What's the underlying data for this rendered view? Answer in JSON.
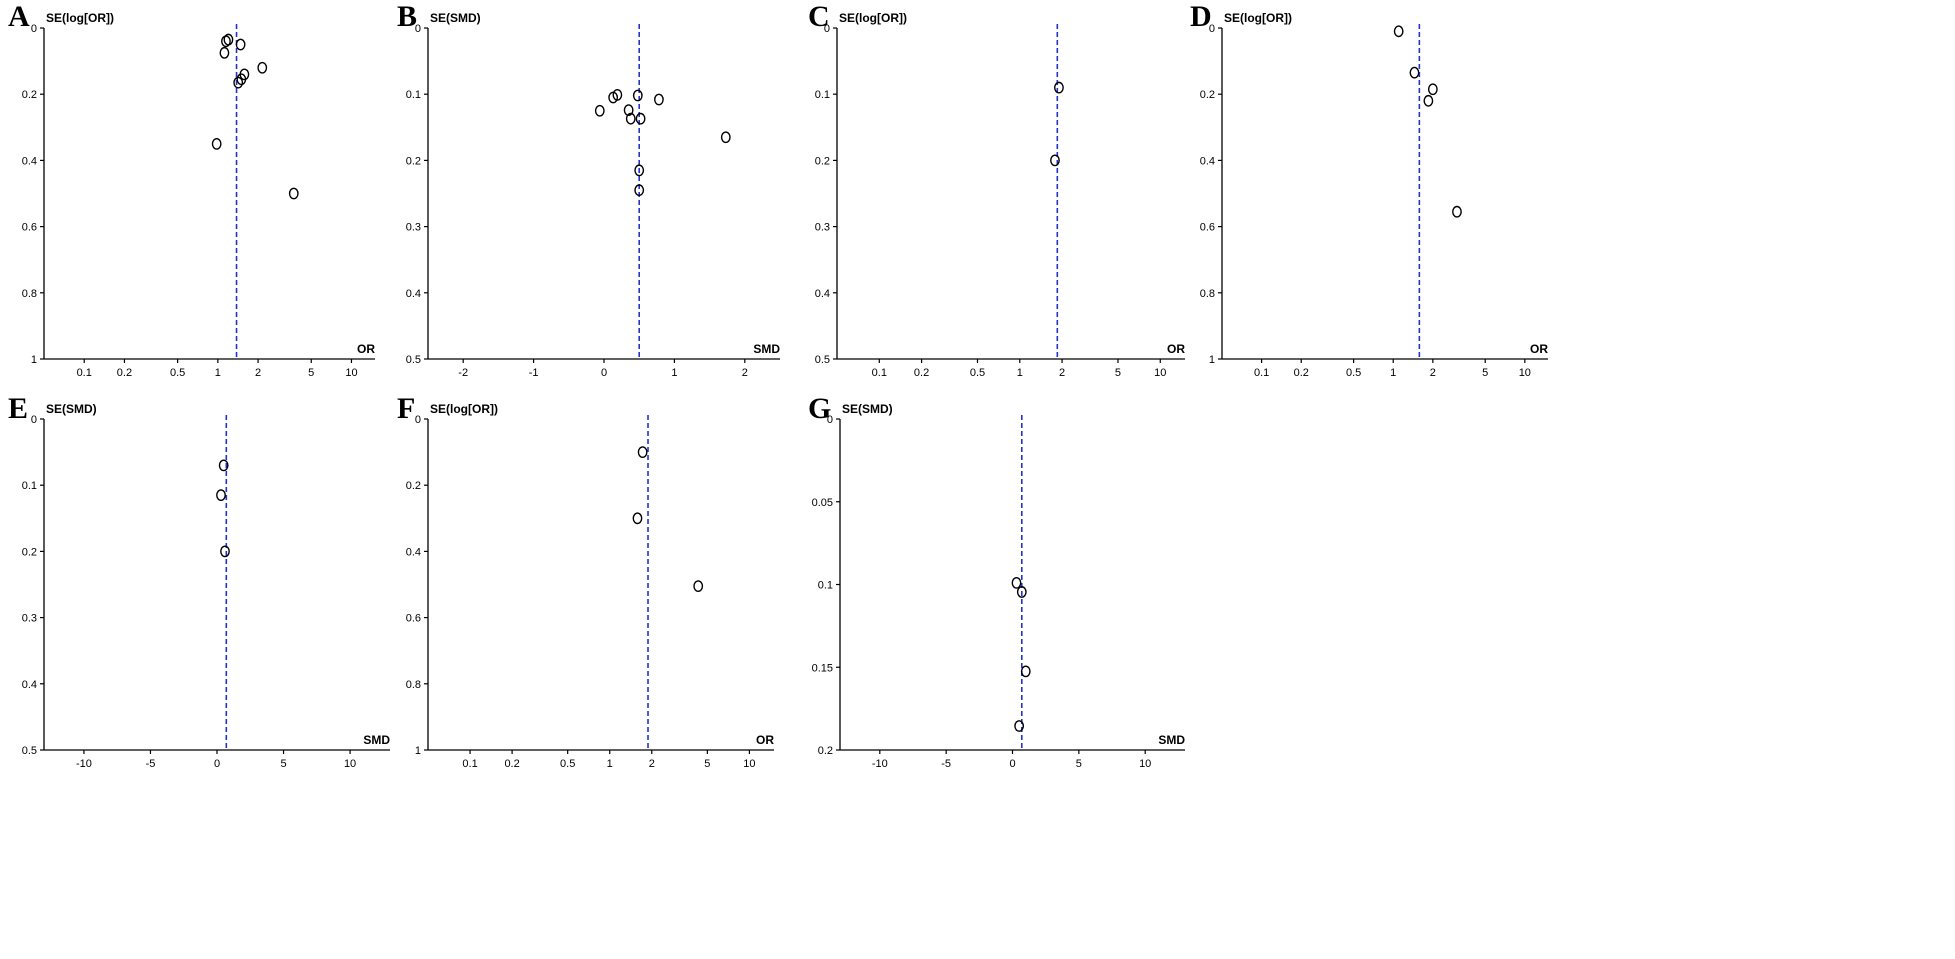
{
  "chart_data": [
    {
      "panel": "A",
      "type": "scatter",
      "ylabel": "SE(log[OR])",
      "xlabel": "OR",
      "xscale": "log",
      "xlim": [
        0.05,
        15
      ],
      "ylim": [
        0,
        1
      ],
      "y_reversed": true,
      "xticks": [
        0.1,
        0.2,
        0.5,
        1,
        2,
        5,
        10
      ],
      "xtick_labels": [
        "0.1",
        "0.2",
        "0.5",
        "1",
        "2",
        "5",
        "10"
      ],
      "yticks": [
        0,
        0.2,
        0.4,
        0.6,
        0.8,
        1
      ],
      "ytick_labels": [
        "0",
        "0.2",
        "0.4",
        "0.6",
        "0.8",
        "1"
      ],
      "reference_line": 1.38,
      "points": [
        {
          "x": 1.15,
          "y": 0.04
        },
        {
          "x": 1.2,
          "y": 0.035
        },
        {
          "x": 1.48,
          "y": 0.05
        },
        {
          "x": 1.12,
          "y": 0.075
        },
        {
          "x": 2.15,
          "y": 0.12
        },
        {
          "x": 1.58,
          "y": 0.14
        },
        {
          "x": 1.5,
          "y": 0.155
        },
        {
          "x": 1.42,
          "y": 0.165
        },
        {
          "x": 0.98,
          "y": 0.35
        },
        {
          "x": 3.7,
          "y": 0.5
        }
      ]
    },
    {
      "panel": "B",
      "type": "scatter",
      "ylabel": "SE(SMD)",
      "xlabel": "SMD",
      "xscale": "linear",
      "xlim": [
        -2.5,
        2.5
      ],
      "ylim": [
        0,
        0.5
      ],
      "y_reversed": true,
      "xticks": [
        -2,
        -1,
        0,
        1,
        2
      ],
      "xtick_labels": [
        "-2",
        "-1",
        "0",
        "1",
        "2"
      ],
      "yticks": [
        0,
        0.1,
        0.2,
        0.3,
        0.4,
        0.5
      ],
      "ytick_labels": [
        "0",
        "0.1",
        "0.2",
        "0.3",
        "0.4",
        "0.5"
      ],
      "reference_line": 0.5,
      "points": [
        {
          "x": -0.06,
          "y": 0.125
        },
        {
          "x": 0.13,
          "y": 0.105
        },
        {
          "x": 0.19,
          "y": 0.101
        },
        {
          "x": 0.35,
          "y": 0.124
        },
        {
          "x": 0.38,
          "y": 0.137
        },
        {
          "x": 0.48,
          "y": 0.102
        },
        {
          "x": 0.52,
          "y": 0.137
        },
        {
          "x": 0.78,
          "y": 0.108
        },
        {
          "x": 1.73,
          "y": 0.165
        },
        {
          "x": 0.5,
          "y": 0.215
        },
        {
          "x": 0.5,
          "y": 0.245
        }
      ]
    },
    {
      "panel": "C",
      "type": "scatter",
      "ylabel": "SE(log[OR])",
      "xlabel": "OR",
      "xscale": "log",
      "xlim": [
        0.05,
        15
      ],
      "ylim": [
        0,
        0.5
      ],
      "y_reversed": true,
      "xticks": [
        0.1,
        0.2,
        0.5,
        1,
        2,
        5,
        10
      ],
      "xtick_labels": [
        "0.1",
        "0.2",
        "0.5",
        "1",
        "2",
        "5",
        "10"
      ],
      "yticks": [
        0,
        0.1,
        0.2,
        0.3,
        0.4,
        0.5
      ],
      "ytick_labels": [
        "0",
        "0.1",
        "0.2",
        "0.3",
        "0.4",
        "0.5"
      ],
      "reference_line": 1.85,
      "points": [
        {
          "x": 1.9,
          "y": 0.09
        },
        {
          "x": 1.78,
          "y": 0.2
        }
      ]
    },
    {
      "panel": "D",
      "type": "scatter",
      "ylabel": "SE(log[OR])",
      "xlabel": "OR",
      "xscale": "log",
      "xlim": [
        0.05,
        15
      ],
      "ylim": [
        0,
        1
      ],
      "y_reversed": true,
      "xticks": [
        0.1,
        0.2,
        0.5,
        1,
        2,
        5,
        10
      ],
      "xtick_labels": [
        "0.1",
        "0.2",
        "0.5",
        "1",
        "2",
        "5",
        "10"
      ],
      "yticks": [
        0,
        0.2,
        0.4,
        0.6,
        0.8,
        1
      ],
      "ytick_labels": [
        "0",
        "0.2",
        "0.4",
        "0.6",
        "0.8",
        "1"
      ],
      "reference_line": 1.58,
      "points": [
        {
          "x": 1.1,
          "y": 0.01
        },
        {
          "x": 1.45,
          "y": 0.135
        },
        {
          "x": 2.0,
          "y": 0.185
        },
        {
          "x": 1.85,
          "y": 0.22
        },
        {
          "x": 3.05,
          "y": 0.555
        }
      ]
    },
    {
      "panel": "E",
      "type": "scatter",
      "ylabel": "SE(SMD)",
      "xlabel": "SMD",
      "xscale": "linear",
      "xlim": [
        -13,
        13
      ],
      "ylim": [
        0,
        0.5
      ],
      "y_reversed": true,
      "xticks": [
        -10,
        -5,
        0,
        5,
        10
      ],
      "xtick_labels": [
        "-10",
        "-5",
        "0",
        "5",
        "10"
      ],
      "yticks": [
        0,
        0.1,
        0.2,
        0.3,
        0.4,
        0.5
      ],
      "ytick_labels": [
        "0",
        "0.1",
        "0.2",
        "0.3",
        "0.4",
        "0.5"
      ],
      "reference_line": 0.7,
      "points": [
        {
          "x": 0.5,
          "y": 0.07
        },
        {
          "x": 0.3,
          "y": 0.115
        },
        {
          "x": 0.6,
          "y": 0.2
        }
      ]
    },
    {
      "panel": "F",
      "type": "scatter",
      "ylabel": "SE(log[OR])",
      "xlabel": "OR",
      "xscale": "log",
      "xlim": [
        0.05,
        15
      ],
      "ylim": [
        0,
        1
      ],
      "y_reversed": true,
      "xticks": [
        0.1,
        0.2,
        0.5,
        1,
        2,
        5,
        10
      ],
      "xtick_labels": [
        "0.1",
        "0.2",
        "0.5",
        "1",
        "2",
        "5",
        "10"
      ],
      "yticks": [
        0,
        0.2,
        0.4,
        0.6,
        0.8,
        1
      ],
      "ytick_labels": [
        "0",
        "0.2",
        "0.4",
        "0.6",
        "0.8",
        "1"
      ],
      "reference_line": 1.88,
      "points": [
        {
          "x": 1.72,
          "y": 0.1
        },
        {
          "x": 1.58,
          "y": 0.3
        },
        {
          "x": 4.3,
          "y": 0.505
        }
      ]
    },
    {
      "panel": "G",
      "type": "scatter",
      "ylabel": "SE(SMD)",
      "xlabel": "SMD",
      "xscale": "linear",
      "xlim": [
        -13,
        13
      ],
      "ylim": [
        0,
        0.2
      ],
      "y_reversed": true,
      "xticks": [
        -10,
        -5,
        0,
        5,
        10
      ],
      "xtick_labels": [
        "-10",
        "-5",
        "0",
        "5",
        "10"
      ],
      "yticks": [
        0,
        0.05,
        0.1,
        0.15,
        0.2
      ],
      "ytick_labels": [
        "0",
        "0.05",
        "0.1",
        "0.15",
        "0.2"
      ],
      "reference_line": 0.7,
      "points": [
        {
          "x": 0.3,
          "y": 0.099
        },
        {
          "x": 0.7,
          "y": 0.1045
        },
        {
          "x": 1.0,
          "y": 0.1525
        },
        {
          "x": 0.5,
          "y": 0.1855
        }
      ]
    }
  ],
  "colors": {
    "reference_line": "#2233cc",
    "axes": "#000000",
    "points": "#000000"
  }
}
